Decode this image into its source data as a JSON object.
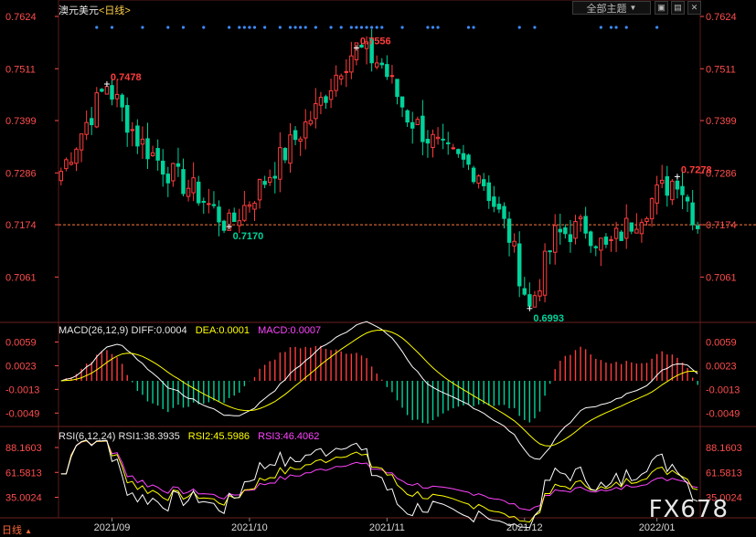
{
  "header": {
    "symbol": "澳元美元",
    "period": "<日线>"
  },
  "toolbar": {
    "theme_label": "全部主题",
    "theme_arrow": "▼",
    "btn_a": "▣",
    "btn_b": "▤",
    "btn_close": "✕"
  },
  "footer": {
    "tab_label": "日线",
    "tab_arrow": "▲"
  },
  "watermark": "FX678",
  "colors": {
    "up": "#ff3c3c",
    "down": "#00d29a",
    "grid": "#5a1a1a",
    "axis_text": "#ff4d4d",
    "diff": "#ffffff",
    "dea": "#ffff00",
    "rsi1": "#ffffff",
    "rsi2": "#ffff00",
    "rsi3": "#ff44ff",
    "dots": "#3c8cff"
  },
  "chart_data": [
    {
      "type": "candlestick",
      "title": "澳元美元<日线>",
      "y_ticks": [
        "0.7624",
        "0.7511",
        "0.7399",
        "0.7286",
        "0.7174",
        "0.7061"
      ],
      "ylim": [
        0.6965,
        0.7624
      ],
      "x_ticks": [
        "2021/09",
        "2021/10",
        "2021/11",
        "2021/12",
        "2022/01"
      ],
      "last_price_line": 0.7174,
      "annotations": [
        {
          "label": "0.7478",
          "index": 9,
          "price": 0.7478,
          "kind": "high"
        },
        {
          "label": "0.7170",
          "index": 33,
          "price": 0.717,
          "kind": "low"
        },
        {
          "label": "0.7556",
          "index": 58,
          "price": 0.7556,
          "kind": "high"
        },
        {
          "label": "0.6993",
          "index": 92,
          "price": 0.6993,
          "kind": "low"
        },
        {
          "label": "0.7278",
          "index": 121,
          "price": 0.7278,
          "kind": "high"
        }
      ],
      "dot_indices": [
        7,
        10,
        16,
        21,
        24,
        28,
        33,
        35,
        36,
        37,
        38,
        40,
        43,
        45,
        46,
        47,
        48,
        50,
        53,
        55,
        57,
        58,
        59,
        60,
        61,
        62,
        63,
        67,
        72,
        73,
        74,
        80,
        81,
        90,
        93,
        106,
        108,
        109,
        111,
        117
      ]
    },
    {
      "type": "macd",
      "title": "MACD(26,12,9)",
      "values_text": [
        "DIFF:0.0004",
        "DEA:0.0001",
        "MACD:0.0007"
      ],
      "y_ticks": [
        "0.0059",
        "0.0023",
        "-0.0013",
        "-0.0049"
      ],
      "ylim": [
        -0.0068,
        0.0068
      ]
    },
    {
      "type": "rsi",
      "title": "RSI(6,12,24)",
      "values_text": [
        "RSI1:38.3935",
        "RSI2:45.5986",
        "RSI3:46.4062"
      ],
      "y_ticks": [
        "88.1603",
        "61.5813",
        "35.0024"
      ],
      "ylim": [
        14,
        96
      ]
    }
  ]
}
